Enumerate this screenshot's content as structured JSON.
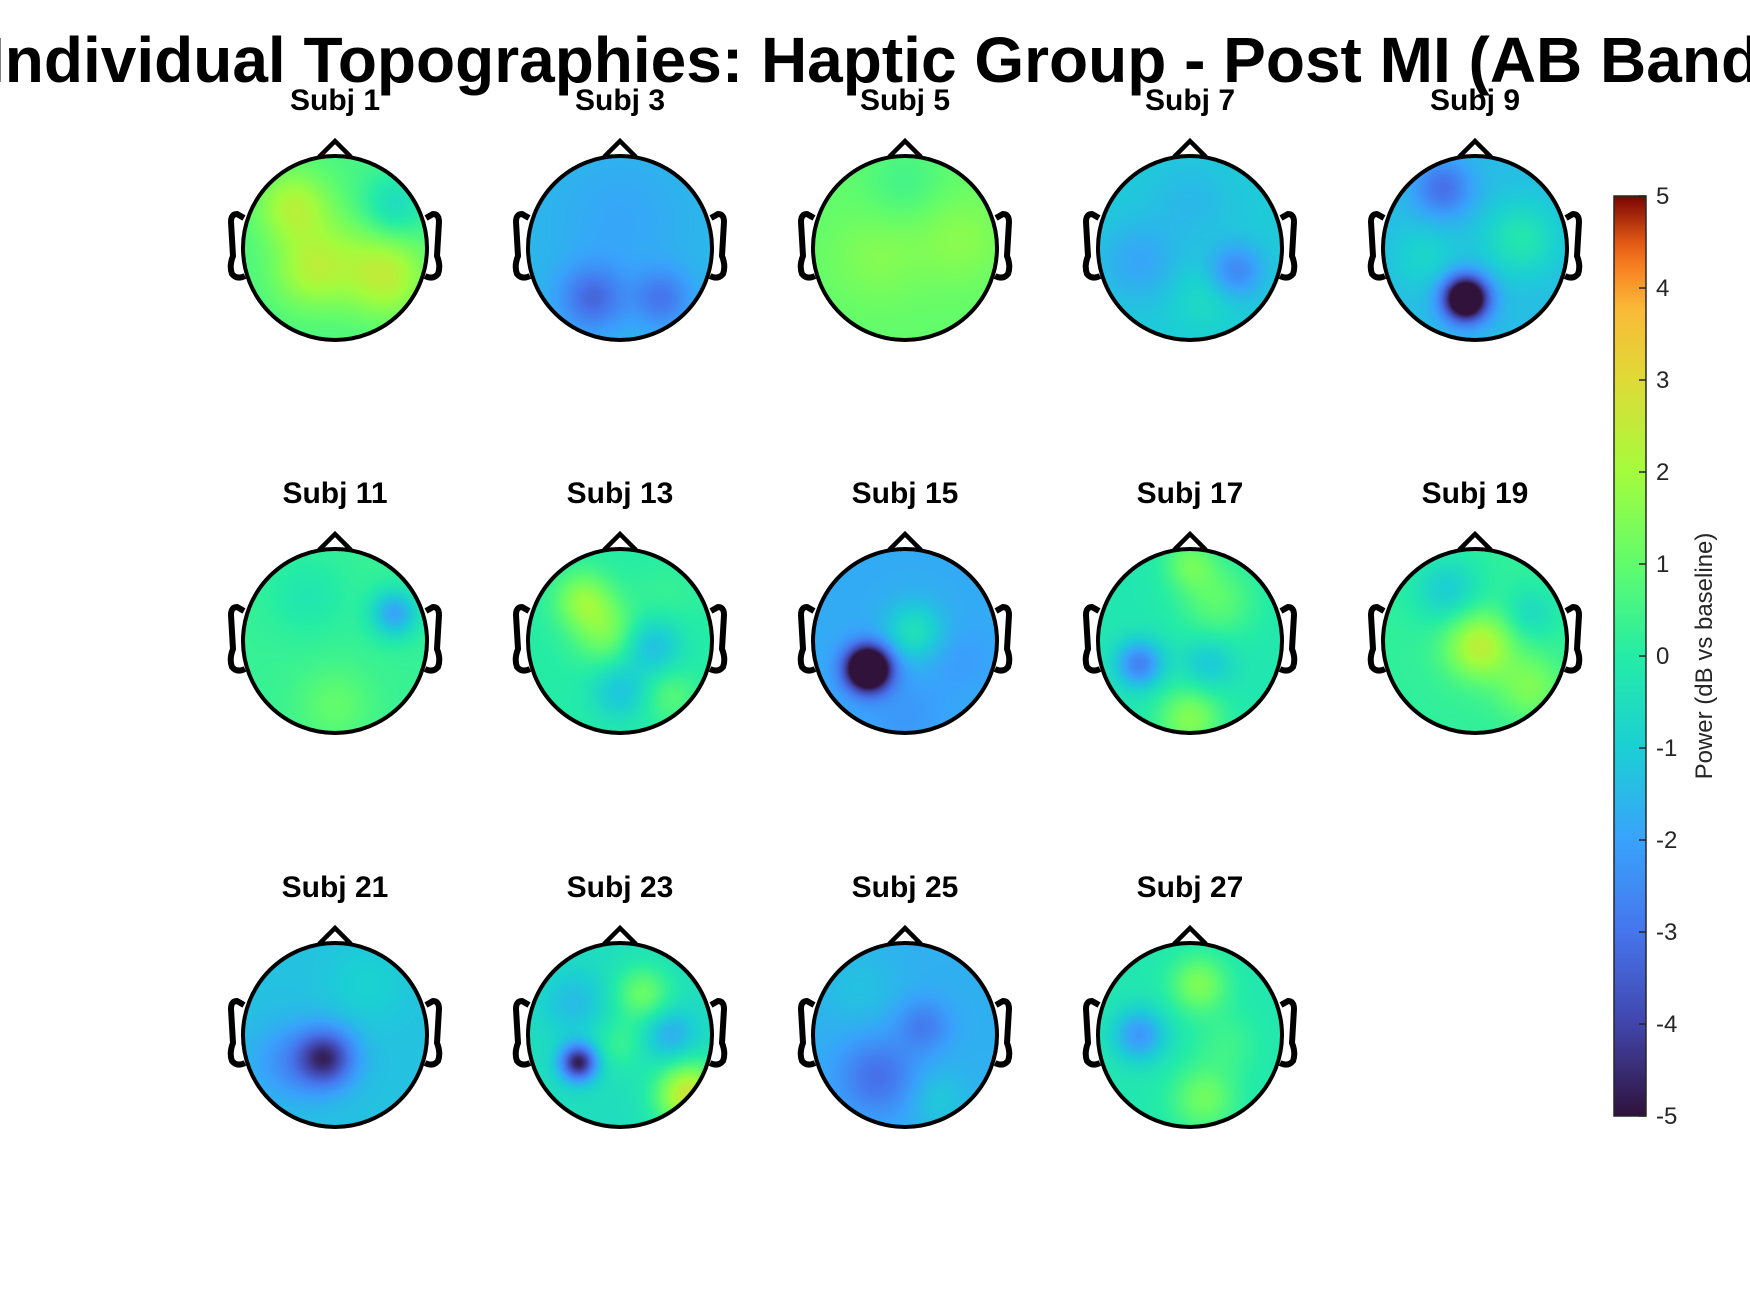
{
  "chart_data": {
    "type": "heatmap",
    "title": "Individual Topographies: Haptic Group - Post MI (AB Band)",
    "colormap": "turbo",
    "clim": [
      -5,
      5
    ],
    "colorbar": {
      "label": "Power (dB vs baseline)",
      "ticks": [
        "5",
        "4",
        "3",
        "2",
        "1",
        "0",
        "-1",
        "-2",
        "-3",
        "-4",
        "-5"
      ],
      "tick_values": [
        5,
        4,
        3,
        2,
        1,
        0,
        -1,
        -2,
        -3,
        -4,
        -5
      ],
      "placement": "right"
    },
    "grid": {
      "rows": 3,
      "cols": 5
    },
    "subjects": [
      {
        "title": "Subj 1",
        "row": 0,
        "col": 0,
        "base": 0.6,
        "blobs": [
          [
            -0.45,
            -0.45,
            0.28,
            1.6
          ],
          [
            -0.25,
            0.25,
            0.3,
            1.5
          ],
          [
            0.55,
            0.3,
            0.32,
            1.8
          ],
          [
            0.65,
            -0.45,
            0.25,
            -1.2
          ],
          [
            0.1,
            -0.1,
            0.3,
            0.4
          ]
        ]
      },
      {
        "title": "Subj 3",
        "row": 0,
        "col": 1,
        "base": -1.5,
        "blobs": [
          [
            -0.3,
            0.55,
            0.25,
            -1.7
          ],
          [
            0.45,
            0.55,
            0.22,
            -1.4
          ],
          [
            0.0,
            -0.3,
            0.5,
            -0.4
          ]
        ]
      },
      {
        "title": "Subj 5",
        "row": 0,
        "col": 2,
        "base": 1.0,
        "blobs": [
          [
            0.6,
            -0.1,
            0.35,
            0.6
          ],
          [
            -0.3,
            0.1,
            0.35,
            0.5
          ],
          [
            0.0,
            -0.7,
            0.3,
            -0.5
          ]
        ]
      },
      {
        "title": "Subj 7",
        "row": 0,
        "col": 3,
        "base": -1.1,
        "blobs": [
          [
            0.5,
            0.25,
            0.2,
            -1.5
          ],
          [
            -0.55,
            0.15,
            0.3,
            -0.8
          ],
          [
            0.15,
            0.55,
            0.25,
            0.5
          ],
          [
            0.0,
            -0.5,
            0.3,
            -0.4
          ]
        ]
      },
      {
        "title": "Subj 9",
        "row": 0,
        "col": 4,
        "base": -1.4,
        "blobs": [
          [
            -0.1,
            0.55,
            0.17,
            -6.0
          ],
          [
            -0.35,
            -0.65,
            0.22,
            -1.7
          ],
          [
            0.5,
            -0.1,
            0.28,
            1.2
          ],
          [
            -0.55,
            0.1,
            0.25,
            0.6
          ]
        ]
      },
      {
        "title": "Subj 11",
        "row": 1,
        "col": 0,
        "base": 0.3,
        "blobs": [
          [
            0.65,
            -0.3,
            0.18,
            -2.2
          ],
          [
            0.0,
            0.7,
            0.3,
            0.7
          ],
          [
            -0.3,
            -0.5,
            0.3,
            -0.5
          ]
        ]
      },
      {
        "title": "Subj 13",
        "row": 1,
        "col": 1,
        "base": 0.0,
        "blobs": [
          [
            -0.4,
            -0.45,
            0.22,
            1.6
          ],
          [
            -0.15,
            -0.1,
            0.25,
            1.3
          ],
          [
            0.35,
            0.05,
            0.22,
            -1.4
          ],
          [
            0.0,
            0.55,
            0.22,
            -1.2
          ],
          [
            0.55,
            0.6,
            0.2,
            0.8
          ],
          [
            0.5,
            -0.5,
            0.25,
            0.3
          ]
        ]
      },
      {
        "title": "Subj 15",
        "row": 1,
        "col": 2,
        "base": -1.8,
        "blobs": [
          [
            -0.4,
            0.3,
            0.17,
            -6.5
          ],
          [
            0.1,
            -0.1,
            0.22,
            1.4
          ],
          [
            0.6,
            0.2,
            0.25,
            -0.3
          ],
          [
            0.0,
            0.8,
            0.3,
            -0.4
          ]
        ]
      },
      {
        "title": "Subj 17",
        "row": 1,
        "col": 3,
        "base": -0.2,
        "blobs": [
          [
            -0.55,
            0.25,
            0.18,
            -2.5
          ],
          [
            0.0,
            0.85,
            0.25,
            1.7
          ],
          [
            0.3,
            -0.45,
            0.3,
            1.1
          ],
          [
            0.0,
            -0.85,
            0.2,
            1.2
          ],
          [
            0.2,
            0.25,
            0.2,
            -1.0
          ]
        ]
      },
      {
        "title": "Subj 19",
        "row": 1,
        "col": 4,
        "base": 0.2,
        "blobs": [
          [
            0.05,
            0.05,
            0.26,
            2.2
          ],
          [
            -0.3,
            -0.55,
            0.25,
            -1.2
          ],
          [
            0.6,
            0.5,
            0.25,
            1.2
          ],
          [
            0.6,
            -0.3,
            0.2,
            -0.8
          ]
        ]
      },
      {
        "title": "Subj 21",
        "row": 2,
        "col": 0,
        "base": -1.3,
        "blobs": [
          [
            -0.1,
            0.25,
            0.22,
            -3.0
          ],
          [
            -0.5,
            0.3,
            0.3,
            -1.0
          ],
          [
            0.35,
            -0.55,
            0.3,
            0.4
          ]
        ]
      },
      {
        "title": "Subj 23",
        "row": 2,
        "col": 1,
        "base": -0.5,
        "blobs": [
          [
            -0.45,
            0.3,
            0.14,
            -4.3
          ],
          [
            0.75,
            0.65,
            0.25,
            3.2
          ],
          [
            0.25,
            -0.45,
            0.22,
            1.6
          ],
          [
            0.55,
            0.0,
            0.2,
            -1.3
          ],
          [
            -0.5,
            -0.35,
            0.25,
            -0.9
          ],
          [
            0.0,
            0.1,
            0.2,
            0.8
          ]
        ]
      },
      {
        "title": "Subj 25",
        "row": 2,
        "col": 2,
        "base": -1.7,
        "blobs": [
          [
            -0.3,
            0.45,
            0.3,
            -1.4
          ],
          [
            0.2,
            -0.1,
            0.2,
            -1.1
          ],
          [
            0.35,
            0.7,
            0.22,
            0.6
          ],
          [
            -0.5,
            -0.5,
            0.3,
            0.4
          ]
        ]
      },
      {
        "title": "Subj 27",
        "row": 2,
        "col": 3,
        "base": -0.2,
        "blobs": [
          [
            0.1,
            -0.55,
            0.22,
            1.6
          ],
          [
            -0.55,
            0.0,
            0.2,
            -2.0
          ],
          [
            0.15,
            0.7,
            0.25,
            1.4
          ],
          [
            0.4,
            0.1,
            0.25,
            0.6
          ]
        ]
      }
    ]
  }
}
